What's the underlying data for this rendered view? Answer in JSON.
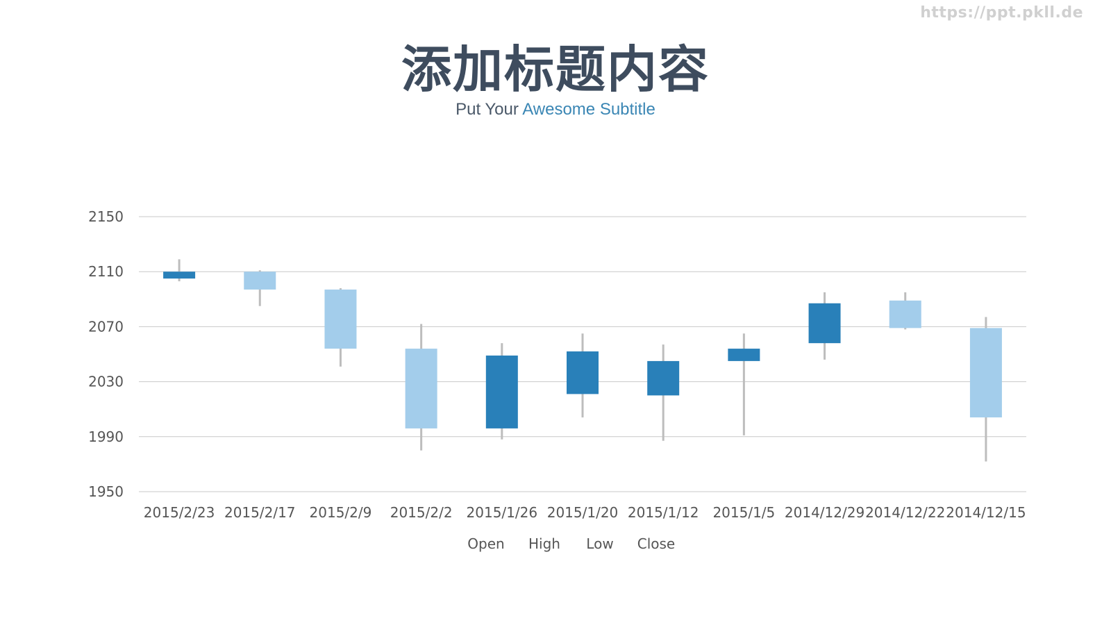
{
  "watermark": "https://ppt.pkll.de",
  "title": "添加标题内容",
  "subtitle": {
    "prefix": "Put Your ",
    "accent": "Awesome Subtitle"
  },
  "colors": {
    "up": "#2980b9",
    "down": "#a3cdeb",
    "wick": "#bdbdbd",
    "grid": "#c8c8c8"
  },
  "chart_data": {
    "type": "candlestick",
    "ylim": [
      1950,
      2150
    ],
    "yticks": [
      2150,
      2110,
      2070,
      2030,
      1990,
      1950
    ],
    "grid": true,
    "legend": [
      "Open",
      "High",
      "Low",
      "Close"
    ],
    "legend_position": "bottom",
    "categories": [
      "2015/2/23",
      "2015/2/17",
      "2015/2/9",
      "2015/2/2",
      "2015/1/26",
      "2015/1/20",
      "2015/1/12",
      "2015/1/5",
      "2014/12/29",
      "2014/12/22",
      "2014/12/15"
    ],
    "open": [
      2105,
      2110,
      2097,
      2054,
      1996,
      2021,
      2020,
      2045,
      2058,
      2089,
      2069
    ],
    "high": [
      2119,
      2111,
      2098,
      2072,
      2058,
      2065,
      2057,
      2065,
      2095,
      2095,
      2077
    ],
    "low": [
      2103,
      2085,
      2041,
      1980,
      1988,
      2004,
      1987,
      1991,
      2046,
      2068,
      1972
    ],
    "close": [
      2110,
      2097,
      2054,
      1996,
      2049,
      2052,
      2045,
      2054,
      2087,
      2069,
      2004
    ]
  }
}
